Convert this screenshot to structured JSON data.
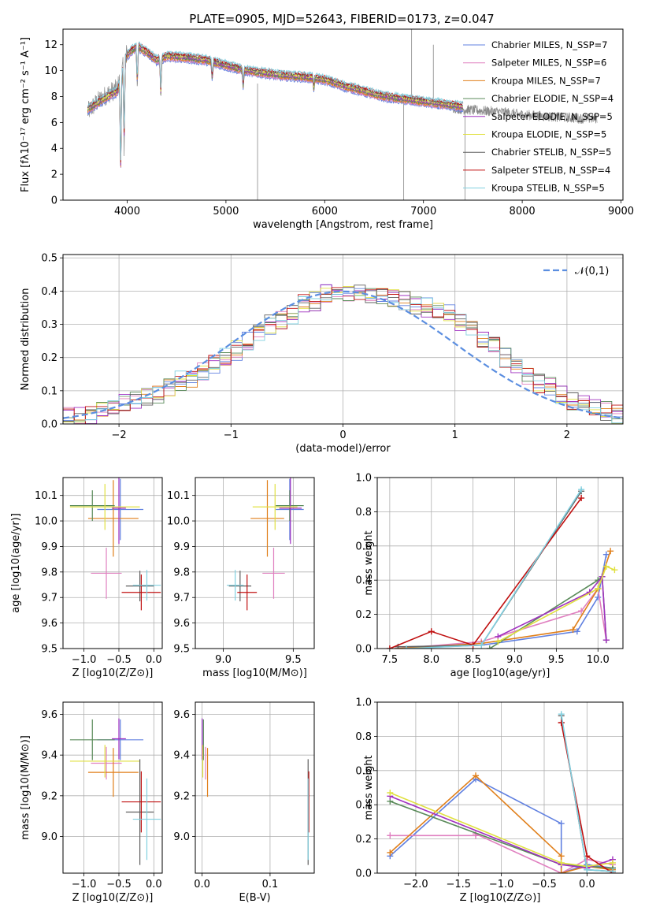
{
  "figure": {
    "title": "PLATE=0905, MJD=52643, FIBERID=0173, z=0.047"
  },
  "colors": {
    "Chabrier MILES": "#6080e0",
    "Salpeter MILES": "#e080c0",
    "Kroupa MILES": "#e07f1a",
    "Chabrier ELODIE": "#5a8a5a",
    "Salpeter ELODIE": "#a030c0",
    "Kroupa ELODIE": "#e0e040",
    "Chabrier STELIB": "#606060",
    "Salpeter STELIB": "#c01010",
    "Kroupa STELIB": "#80d0e0",
    "normal_curve": "#5b8ee0",
    "data_spectrum": "#888888"
  },
  "chart_data": [
    {
      "id": "spectrum",
      "type": "line",
      "xlabel": "wavelength [Angstrom, rest frame]",
      "ylabel": "Flux [fλ10⁻¹⁷ erg cm⁻² s⁻¹ A⁻¹]",
      "xlim": [
        3350,
        9020
      ],
      "ylim": [
        0,
        13.2
      ],
      "xticks": [
        "4000",
        "5000",
        "6000",
        "7000",
        "8000",
        "9000"
      ],
      "yticks": [
        "0",
        "2",
        "4",
        "6",
        "8",
        "10",
        "12"
      ],
      "legend_position": "top-right",
      "legend": [
        "Chabrier MILES, N_SSP=7",
        "Salpeter MILES, N_SSP=6",
        "Kroupa MILES, N_SSP=7",
        "Chabrier ELODIE, N_SSP=4",
        "Salpeter ELODIE, N_SSP=5",
        "Kroupa ELODIE, N_SSP=5",
        "Chabrier STELIB, N_SSP=5",
        "Salpeter STELIB, N_SSP=4",
        "Kroupa STELIB, N_SSP=5"
      ],
      "legend_models": [
        "Chabrier MILES",
        "Salpeter MILES",
        "Kroupa MILES",
        "Chabrier ELODIE",
        "Salpeter ELODIE",
        "Kroupa ELODIE",
        "Chabrier STELIB",
        "Salpeter STELIB",
        "Kroupa STELIB"
      ],
      "data_envelope": {
        "x": [
          3600,
          3700,
          3800,
          3900,
          4000,
          4100,
          4200,
          4300,
          4400,
          4600,
          4800,
          5000,
          5200,
          5400,
          5600,
          5800,
          6000,
          6200,
          6400,
          6600,
          6800,
          7000,
          7200,
          7400,
          7600,
          7800,
          8000,
          8200,
          8400,
          8600,
          8760
        ],
        "y": [
          6.8,
          7.6,
          8.2,
          8.6,
          11.5,
          11.8,
          11.3,
          10.6,
          11.2,
          11.0,
          10.7,
          10.4,
          10.0,
          9.7,
          9.5,
          9.4,
          9.3,
          8.8,
          8.3,
          8.0,
          7.8,
          7.6,
          7.3,
          7.0,
          6.9,
          6.8,
          6.6,
          6.5,
          6.4,
          6.3,
          6.3
        ]
      },
      "model_envelope": {
        "x": [
          3600,
          3700,
          3800,
          3900,
          4000,
          4100,
          4200,
          4300,
          4400,
          4600,
          4800,
          5000,
          5200,
          5400,
          5600,
          5800,
          6000,
          6200,
          6400,
          6600,
          6800,
          7000,
          7200,
          7400
        ],
        "y": [
          7.0,
          7.5,
          8.0,
          8.4,
          11.2,
          11.9,
          11.4,
          10.8,
          11.1,
          11.0,
          10.8,
          10.4,
          10.0,
          9.8,
          9.6,
          9.5,
          9.3,
          8.8,
          8.4,
          8.0,
          7.8,
          7.6,
          7.4,
          7.2
        ]
      },
      "absorption_features": [
        {
          "x": 3934,
          "y": 1.5
        },
        {
          "x": 3969,
          "y": 4.2
        },
        {
          "x": 4102,
          "y": 8.6
        },
        {
          "x": 4340,
          "y": 8.0
        },
        {
          "x": 4861,
          "y": 9.2
        },
        {
          "x": 5175,
          "y": 8.8
        },
        {
          "x": 5890,
          "y": 8.6
        }
      ],
      "spikes": [
        {
          "x": 5320,
          "y0": 0.0,
          "y1": 9.0
        },
        {
          "x": 6800,
          "y0": 0.0,
          "y1": 7.8
        },
        {
          "x": 7420,
          "y0": 0.0,
          "y1": 7.0
        },
        {
          "x": 6880,
          "y0": 8.0,
          "y1": 13.2
        },
        {
          "x": 7100,
          "y0": 7.6,
          "y1": 12.0
        }
      ]
    },
    {
      "id": "residual_histogram",
      "type": "line",
      "xlabel": "(data-model)/error",
      "ylabel": "Normed distribution",
      "xlim": [
        -2.5,
        2.5
      ],
      "ylim": [
        0,
        0.51
      ],
      "xticks": [
        "−2",
        "−1",
        "0",
        "1",
        "2"
      ],
      "yticks": [
        "0.0",
        "0.1",
        "0.2",
        "0.3",
        "0.4",
        "0.5"
      ],
      "grid": true,
      "legend_position": "top-right",
      "legend": [
        "𝒩(0,1)"
      ],
      "bin_width": 0.1,
      "bin_start": -2.5,
      "base_values": [
        0.02,
        0.02,
        0.03,
        0.04,
        0.05,
        0.06,
        0.07,
        0.08,
        0.09,
        0.11,
        0.13,
        0.14,
        0.16,
        0.18,
        0.2,
        0.22,
        0.25,
        0.27,
        0.3,
        0.31,
        0.33,
        0.36,
        0.37,
        0.39,
        0.4,
        0.39,
        0.4,
        0.39,
        0.39,
        0.38,
        0.37,
        0.36,
        0.35,
        0.34,
        0.33,
        0.31,
        0.28,
        0.26,
        0.24,
        0.2,
        0.17,
        0.14,
        0.12,
        0.11,
        0.09,
        0.07,
        0.06,
        0.05,
        0.04,
        0.03
      ]
    },
    {
      "id": "age_vs_Z",
      "type": "scatter",
      "xlabel": "Z [log10(Z/Z⊙)]",
      "ylabel": "age [log10(age/yr)]",
      "xlim": [
        -1.3,
        0.12
      ],
      "ylim": [
        9.5,
        10.17
      ],
      "xticks": [
        "−1.0",
        "−0.5",
        "0.0"
      ],
      "yticks": [
        "9.5",
        "9.6",
        "9.7",
        "9.8",
        "9.9",
        "10.0",
        "10.1"
      ],
      "grid": true
    },
    {
      "id": "age_vs_mass",
      "type": "scatter",
      "xlabel": "mass [log10(M/M⊙)]",
      "ylabel": "",
      "xlim": [
        8.8,
        9.65
      ],
      "ylim": [
        9.5,
        10.17
      ],
      "xticks": [
        "9.0",
        "9.5"
      ],
      "yticks": [
        "9.5",
        "9.6",
        "9.7",
        "9.8",
        "9.9",
        "10.0",
        "10.1"
      ],
      "grid": true
    },
    {
      "id": "massweight_vs_age",
      "type": "line",
      "xlabel": "age [log10(age/yr)]",
      "ylabel": "mass weight",
      "xlim": [
        7.35,
        10.3
      ],
      "ylim": [
        0,
        1.0
      ],
      "xticks": [
        "7.5",
        "8.0",
        "8.5",
        "9.0",
        "9.5",
        "10.0"
      ],
      "yticks": [
        "0.0",
        "0.2",
        "0.4",
        "0.6",
        "0.8",
        "1.0"
      ],
      "grid": true
    },
    {
      "id": "mass_vs_Z",
      "type": "scatter",
      "xlabel": "Z [log10(Z/Z⊙)]",
      "ylabel": "mass [log10(M/M⊙)]",
      "xlim": [
        -1.3,
        0.12
      ],
      "ylim": [
        8.82,
        9.66
      ],
      "xticks": [
        "−1.0",
        "−0.5",
        "0.0"
      ],
      "yticks": [
        "9.0",
        "9.2",
        "9.4",
        "9.6"
      ],
      "grid": true
    },
    {
      "id": "mass_vs_EBV",
      "type": "scatter",
      "xlabel": "E(B-V)",
      "ylabel": "",
      "xlim": [
        -0.01,
        0.165
      ],
      "ylim": [
        8.82,
        9.66
      ],
      "xticks": [
        "0.0",
        "0.1"
      ],
      "yticks": [
        "9.0",
        "9.2",
        "9.4",
        "9.6"
      ],
      "grid": true
    },
    {
      "id": "massweight_vs_Z",
      "type": "line",
      "xlabel": "Z [log10(Z/Z⊙)]",
      "ylabel": "mass weight",
      "xlim": [
        -2.45,
        0.42
      ],
      "ylim": [
        0,
        1.0
      ],
      "xticks": [
        "−2.0",
        "−1.5",
        "−1.0",
        "−0.5",
        "0.0"
      ],
      "yticks": [
        "0.0",
        "0.2",
        "0.4",
        "0.6",
        "0.8",
        "1.0"
      ],
      "grid": true
    }
  ],
  "models": [
    {
      "name": "Chabrier MILES",
      "Z": -0.48,
      "age": 10.045,
      "mass": 9.475,
      "ebv": 0.0,
      "zerr": 0.33,
      "ageerr": 0.06,
      "masserr": 0.1,
      "zvert": 0.08,
      "agevert": 0.12,
      "massvert": 0.1,
      "wa": [
        [
          7.6,
          0.0
        ],
        [
          8.6,
          0.02
        ],
        [
          9.75,
          0.1
        ],
        [
          10.0,
          0.3
        ],
        [
          10.1,
          0.55
        ]
      ],
      "wz": [
        [
          -2.3,
          0.1
        ],
        [
          -1.3,
          0.55
        ],
        [
          -0.3,
          0.29
        ],
        [
          -0.3,
          0.0
        ],
        [
          0.0,
          0.05
        ],
        [
          0.3,
          0.03
        ]
      ]
    },
    {
      "name": "Salpeter MILES",
      "Z": -0.68,
      "age": 9.795,
      "mass": 9.36,
      "ebv": 0.005,
      "zerr": 0.22,
      "ageerr": 0.15,
      "masserr": 0.08,
      "zvert": 0.04,
      "agevert": 0.1,
      "massvert": 0.08,
      "wa": [
        [
          7.6,
          0.0
        ],
        [
          8.6,
          0.04
        ],
        [
          9.8,
          0.22
        ],
        [
          10.0,
          0.35
        ],
        [
          10.1,
          0.05
        ]
      ],
      "wz": [
        [
          -2.3,
          0.22
        ],
        [
          -1.3,
          0.22
        ],
        [
          -1.3,
          0.23
        ],
        [
          -0.3,
          0.0
        ],
        [
          0.0,
          0.08
        ],
        [
          0.3,
          0.05
        ]
      ]
    },
    {
      "name": "Kroupa MILES",
      "Z": -0.58,
      "age": 10.01,
      "mass": 9.315,
      "ebv": 0.008,
      "zerr": 0.36,
      "ageerr": 0.06,
      "masserr": 0.12,
      "zvert": 0.1,
      "agevert": 0.15,
      "massvert": 0.12,
      "wa": [
        [
          7.6,
          0.0
        ],
        [
          8.6,
          0.03
        ],
        [
          9.7,
          0.11
        ],
        [
          10.0,
          0.35
        ],
        [
          10.15,
          0.57
        ]
      ],
      "wz": [
        [
          -2.3,
          0.12
        ],
        [
          -1.3,
          0.57
        ],
        [
          -0.3,
          0.1
        ],
        [
          -0.3,
          0.0
        ],
        [
          0.0,
          0.04
        ],
        [
          0.3,
          0.02
        ]
      ]
    },
    {
      "name": "Chabrier ELODIE",
      "Z": -0.88,
      "age": 10.06,
      "mass": 9.475,
      "ebv": 0.002,
      "zerr": 0.32,
      "ageerr": 0.05,
      "masserr": 0.1,
      "zvert": 0.06,
      "agevert": 0.06,
      "massvert": 0.1,
      "wa": [
        [
          8.7,
          0.0
        ],
        [
          10.0,
          0.4
        ],
        [
          10.05,
          0.42
        ],
        [
          10.1,
          0.05
        ]
      ],
      "wz": [
        [
          -2.3,
          0.42
        ],
        [
          -0.3,
          0.05
        ],
        [
          0.0,
          0.04
        ],
        [
          0.3,
          0.03
        ]
      ]
    },
    {
      "name": "Salpeter ELODIE",
      "Z": -0.5,
      "age": 10.05,
      "mass": 9.48,
      "ebv": 0.0,
      "zerr": 0.1,
      "ageerr": 0.06,
      "masserr": 0.08,
      "zvert": 0.07,
      "agevert": 0.14,
      "massvert": 0.1,
      "wa": [
        [
          8.8,
          0.07
        ],
        [
          9.9,
          0.33
        ],
        [
          10.05,
          0.42
        ],
        [
          10.1,
          0.05
        ]
      ],
      "wz": [
        [
          -2.3,
          0.45
        ],
        [
          -0.3,
          0.05
        ],
        [
          0.0,
          0.03
        ],
        [
          0.3,
          0.08
        ]
      ]
    },
    {
      "name": "Kroupa ELODIE",
      "Z": -0.7,
      "age": 10.055,
      "mass": 9.37,
      "ebv": 0.001,
      "zerr": 0.5,
      "ageerr": 0.11,
      "masserr": 0.16,
      "zvert": 0.09,
      "agevert": 0.09,
      "massvert": 0.08,
      "wa": [
        [
          8.8,
          0.04
        ],
        [
          10.0,
          0.35
        ],
        [
          10.1,
          0.48
        ],
        [
          10.2,
          0.46
        ]
      ],
      "wz": [
        [
          -2.3,
          0.47
        ],
        [
          -0.3,
          0.06
        ],
        [
          0.0,
          0.04
        ],
        [
          0.3,
          0.06
        ]
      ]
    },
    {
      "name": "Chabrier STELIB",
      "Z": -0.2,
      "age": 9.745,
      "mass": 9.12,
      "ebv": 0.156,
      "zerr": 0.2,
      "ageerr": 0.08,
      "masserr": 0.08,
      "zvert": 0.2,
      "agevert": 0.06,
      "massvert": 0.26,
      "wa": [
        [
          7.6,
          0.01
        ],
        [
          8.6,
          0.02
        ],
        [
          9.8,
          0.92
        ]
      ],
      "wz": [
        [
          -0.3,
          0.92
        ],
        [
          -0.0,
          0.02
        ],
        [
          0.3,
          0.01
        ]
      ]
    },
    {
      "name": "Salpeter STELIB",
      "Z": -0.18,
      "age": 9.72,
      "mass": 9.17,
      "ebv": 0.157,
      "zerr": 0.28,
      "ageerr": 0.09,
      "masserr": 0.07,
      "zvert": 0.05,
      "agevert": 0.07,
      "massvert": 0.15,
      "wa": [
        [
          7.5,
          0.0
        ],
        [
          8.0,
          0.1
        ],
        [
          8.5,
          0.02
        ],
        [
          9.8,
          0.88
        ]
      ],
      "wz": [
        [
          -0.3,
          0.88
        ],
        [
          -0.3,
          0.88
        ],
        [
          0.0,
          0.1
        ],
        [
          0.3,
          0.0
        ]
      ]
    },
    {
      "name": "Kroupa STELIB",
      "Z": -0.1,
      "age": 9.748,
      "mass": 9.085,
      "ebv": 0.156,
      "zerr": 0.2,
      "ageerr": 0.05,
      "masserr": 0.06,
      "zvert": 0.2,
      "agevert": 0.06,
      "massvert": 0.2,
      "wa": [
        [
          7.7,
          0.0
        ],
        [
          8.6,
          0.02
        ],
        [
          9.8,
          0.93
        ]
      ],
      "wz": [
        [
          -0.3,
          0.93
        ],
        [
          0.0,
          0.02
        ],
        [
          0.3,
          0.01
        ]
      ]
    }
  ]
}
